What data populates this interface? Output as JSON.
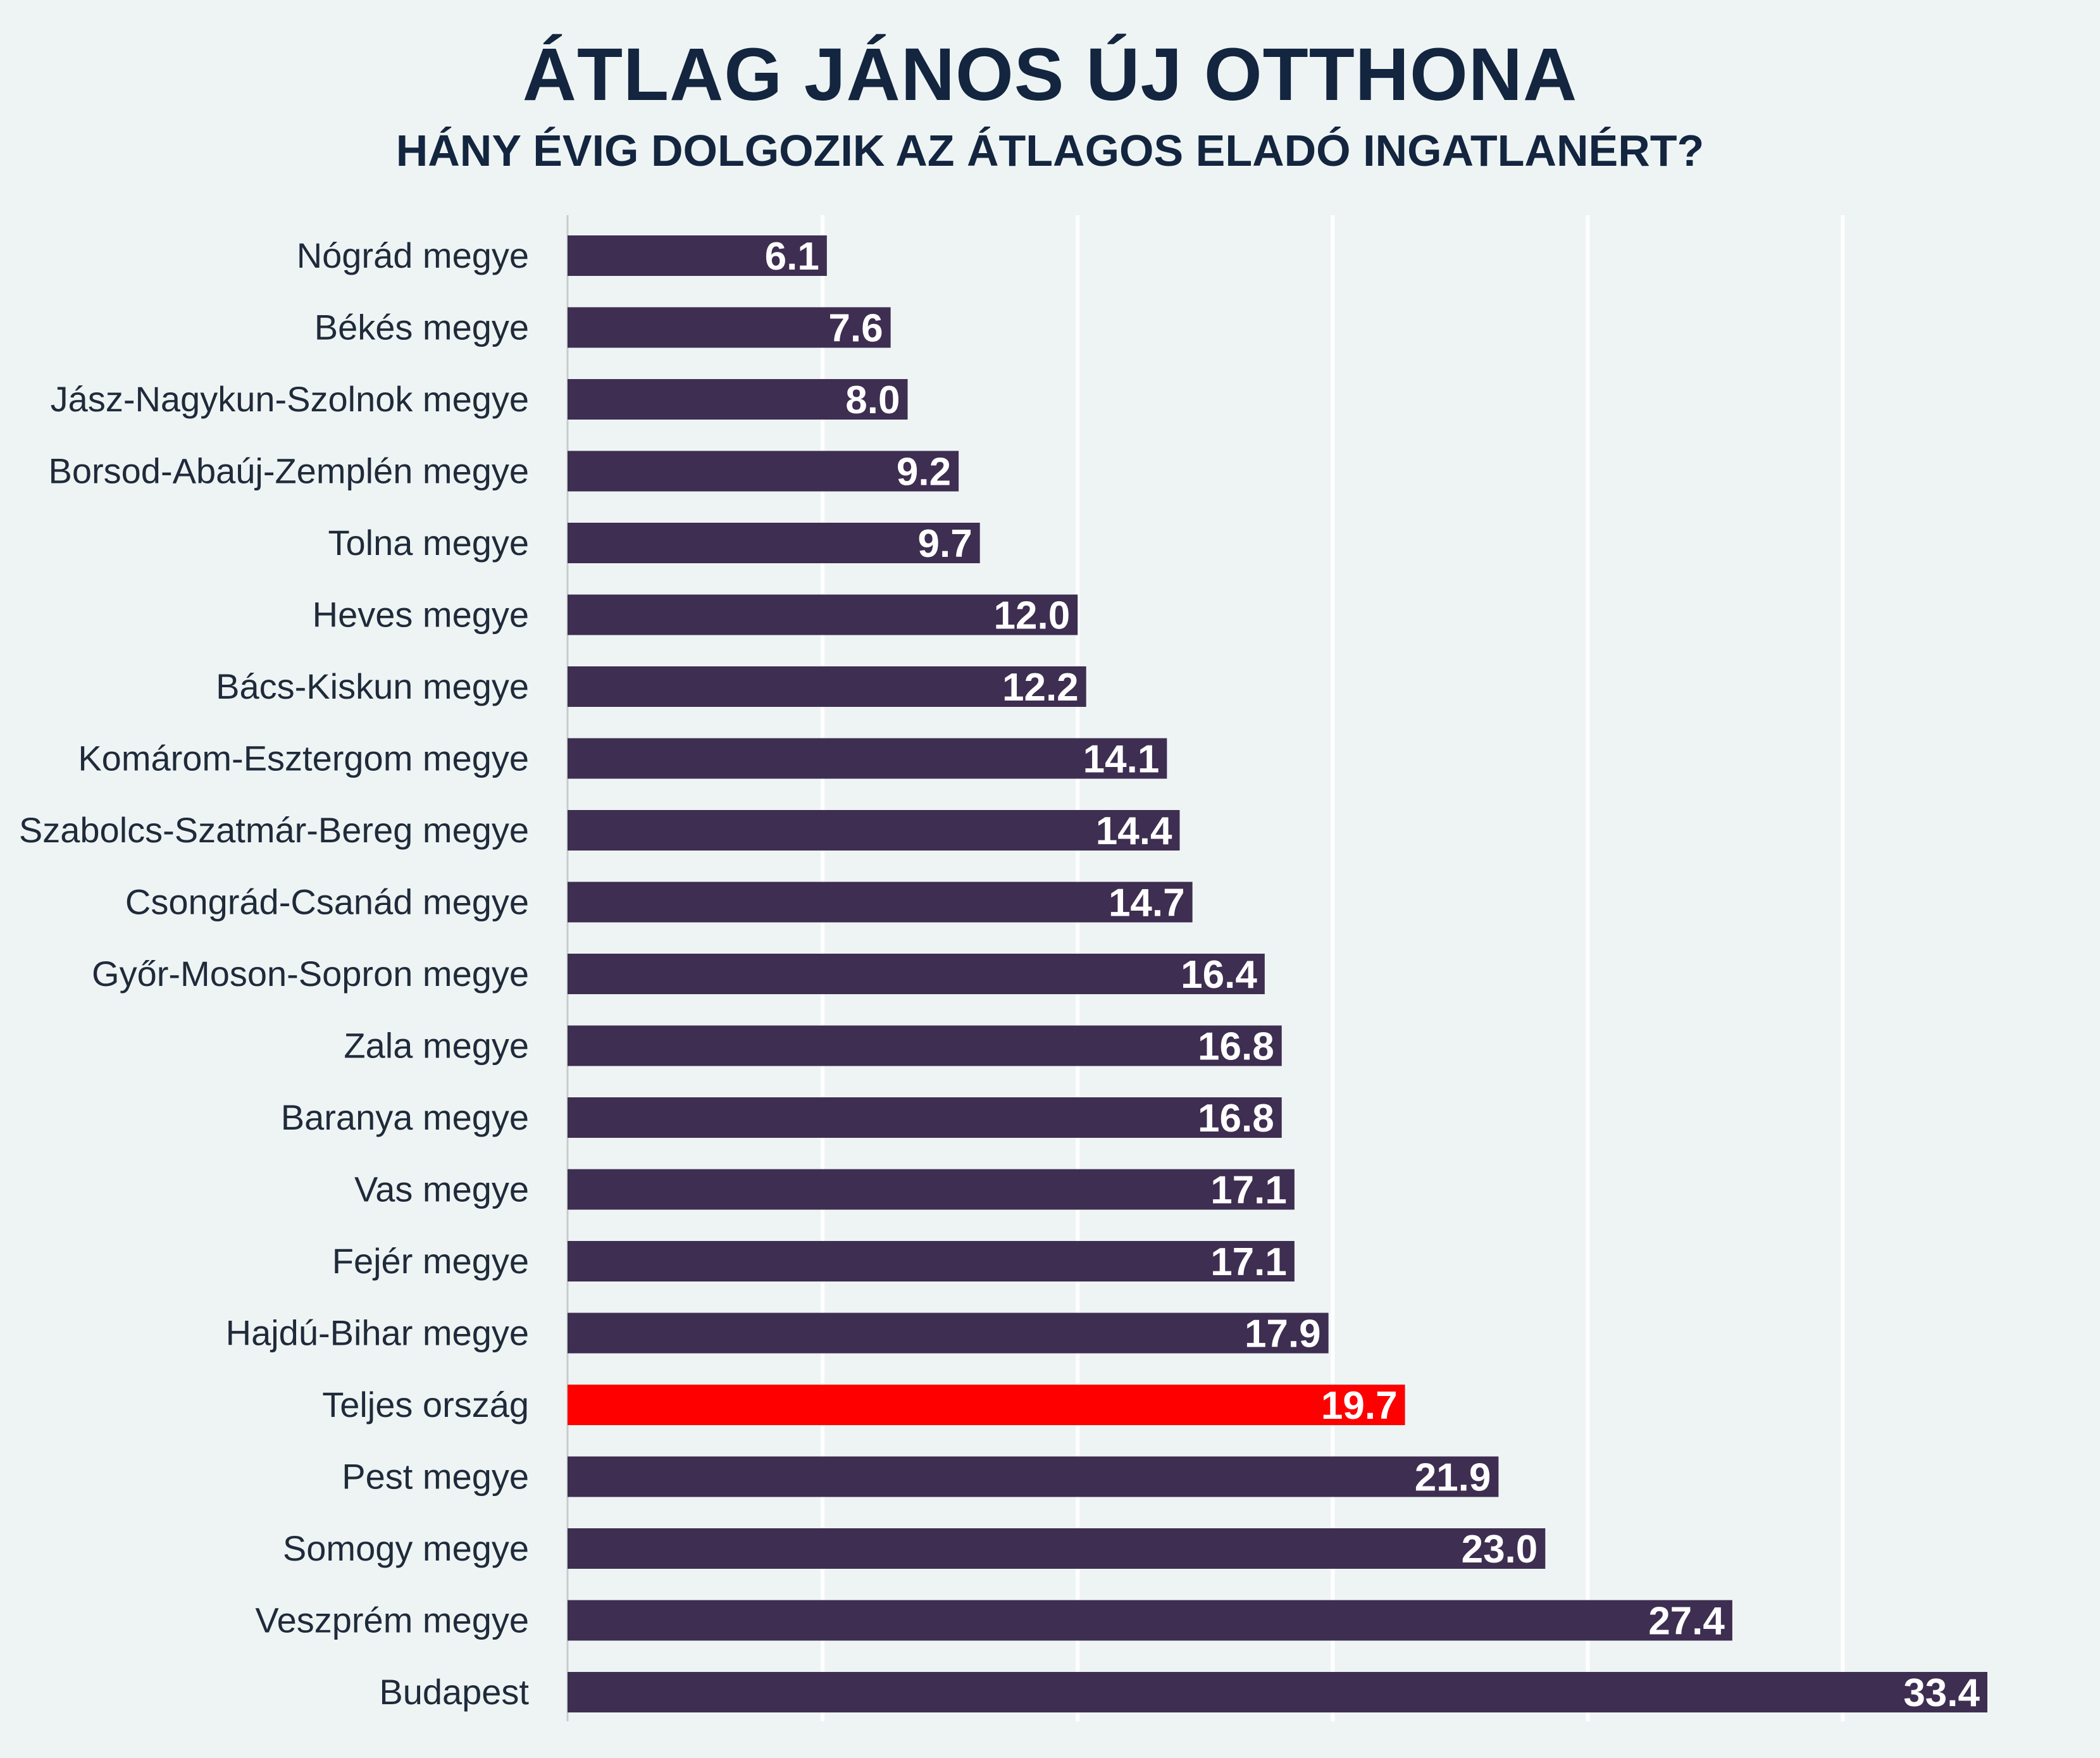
{
  "chart_data": {
    "type": "bar",
    "orientation": "horizontal",
    "title": "ÁTLAG JÁNOS ÚJ OTTHONA",
    "subtitle": "HÁNY ÉVIG DOLGOZIK AZ ÁTLAGOS ELADÓ INGATLANÉRT?",
    "categories": [
      "Nógrád megye",
      "Békés megye",
      "Jász-Nagykun-Szolnok megye",
      "Borsod-Abaúj-Zemplén megye",
      "Tolna megye",
      "Heves megye",
      "Bács-Kiskun megye",
      "Komárom-Esztergom megye",
      "Szabolcs-Szatmár-Bereg megye",
      "Csongrád-Csanád megye",
      "Győr-Moson-Sopron megye",
      "Zala megye",
      "Baranya megye",
      "Vas megye",
      "Fejér megye",
      "Hajdú-Bihar megye",
      "Teljes ország",
      "Pest megye",
      "Somogy megye",
      "Veszprém megye",
      "Budapest"
    ],
    "values": [
      6.1,
      7.6,
      8.0,
      9.2,
      9.7,
      12.0,
      12.2,
      14.1,
      14.4,
      14.7,
      16.4,
      16.8,
      16.8,
      17.1,
      17.1,
      17.9,
      19.7,
      21.9,
      23.0,
      27.4,
      33.4
    ],
    "value_labels": [
      "6.1",
      "7.6",
      "8.0",
      "9.2",
      "9.7",
      "12.0",
      "12.2",
      "14.1",
      "14.4",
      "14.7",
      "16.4",
      "16.8",
      "16.8",
      "17.1",
      "17.1",
      "17.9",
      "19.7",
      "21.9",
      "23.0",
      "27.4",
      "33.4"
    ],
    "highlight_category": "Teljes ország",
    "xlim": [
      0,
      35
    ],
    "grid_step": 6,
    "grid": true,
    "xlabel": "",
    "ylabel": ""
  },
  "colors": {
    "background": "#eef4f4",
    "bar": "#3e2e51",
    "highlight": "#ff0000",
    "grid": "#ffffff",
    "axis": "#c8cccc",
    "label_inside": "#ffffff",
    "label_outside": "#13253f"
  }
}
